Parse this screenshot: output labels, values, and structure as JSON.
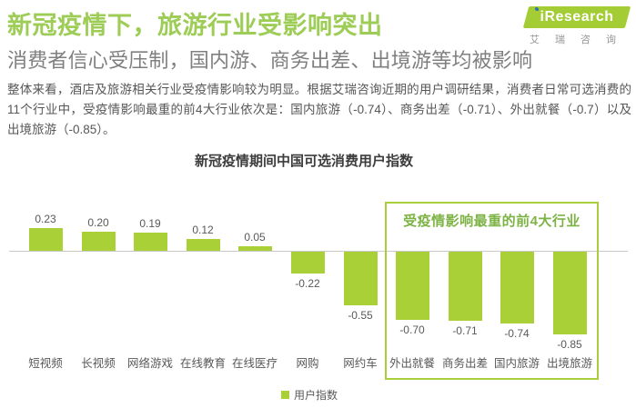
{
  "header": {
    "title": "新冠疫情下，旅游行业受影响突出",
    "subtitle": "消费者信心受压制，国内游、商务出差、出境游等均被影响",
    "body": "整体来看，酒店及旅游相关行业受疫情影响较为明显。根据艾瑞咨询近期的用户调研结果，消费者日常可选消费的11个行业中，受疫情影响最重的前4大行业依次是：国内旅游（-0.74）、商务出差（-0.71）、外出就餐（-0.7）以及出境旅游（-0.85）。",
    "logo": {
      "brand": "iResearch",
      "brand_cn": "艾瑞咨询"
    }
  },
  "chart_data": {
    "type": "bar",
    "title": "新冠疫情期间中国可选消费用户指数",
    "categories": [
      "短视频",
      "长视频",
      "网络游戏",
      "在线教育",
      "在线医疗",
      "网购",
      "网约车",
      "外出就餐",
      "商务出差",
      "国内旅游",
      "出境旅游"
    ],
    "values": [
      0.23,
      0.2,
      0.19,
      0.12,
      0.05,
      -0.22,
      -0.55,
      -0.7,
      -0.71,
      -0.74,
      -0.85
    ],
    "value_labels": [
      "0.23",
      "0.20",
      "0.19",
      "0.12",
      "0.05",
      "-0.22",
      "-0.55",
      "-0.70",
      "-0.71",
      "-0.74",
      "-0.85"
    ],
    "xlabel": "",
    "ylabel": "",
    "ylim": [
      -1.0,
      0.35
    ],
    "grid": false,
    "legend": [
      "用户指数"
    ],
    "legend_position": "bottom-center",
    "annotation": "受疫情影响最重的前4大行业",
    "annotation_covers": [
      "外出就餐",
      "商务出差",
      "国内旅游",
      "出境旅游"
    ]
  },
  "colors": {
    "title_green": "#9dcd57",
    "brand_green": "#a3cc35",
    "bar_green": "#a9d036",
    "annotation_green": "#7db345",
    "annotation_border": "#a9ce3b",
    "subtitle_gray": "#7f7f7f",
    "body_gray": "#565656",
    "label_gray": "#595959",
    "axis_gray": "#c9c9c9",
    "logo_dot_blue": "#2e6fb5"
  }
}
